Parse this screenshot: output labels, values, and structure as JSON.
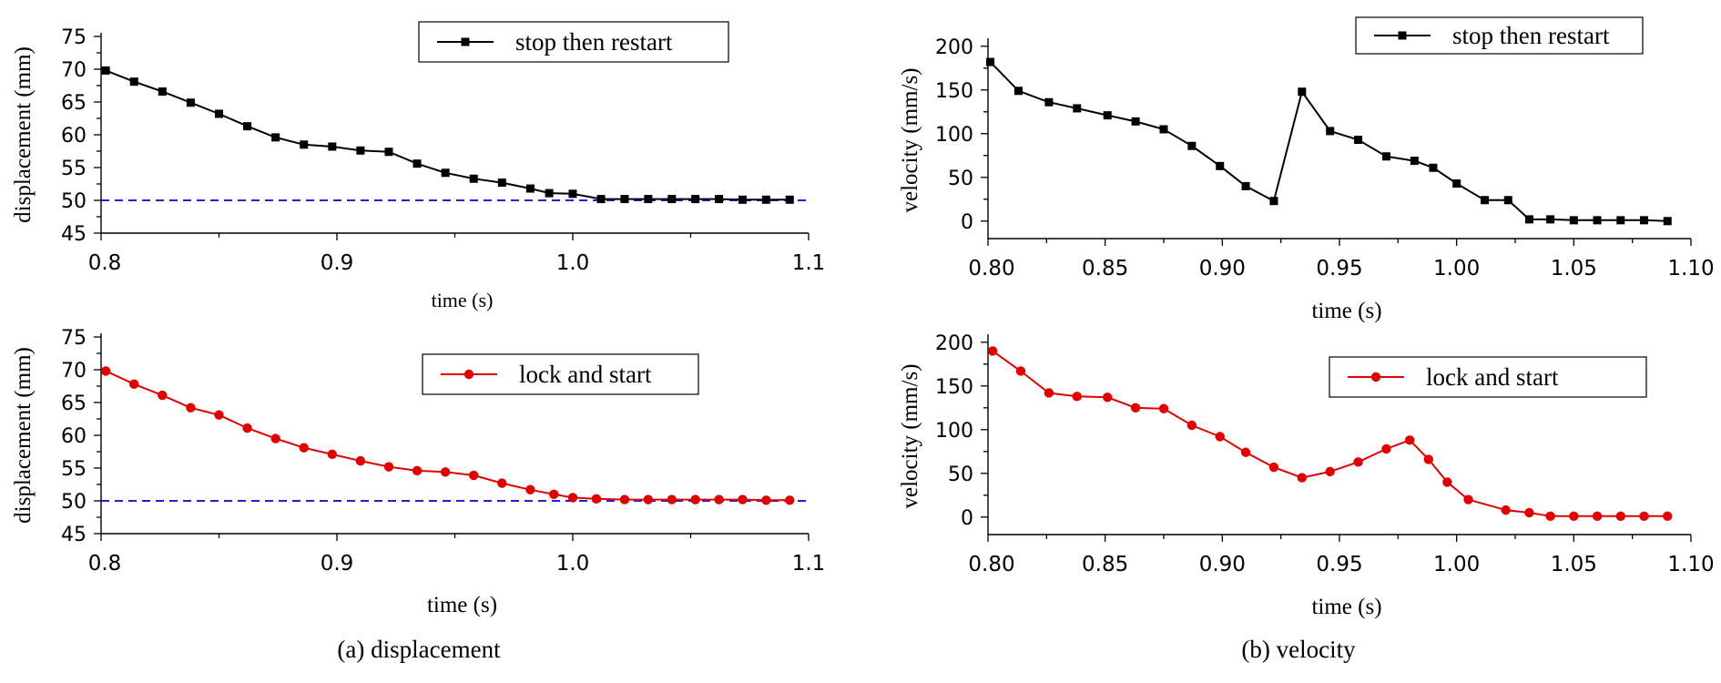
{
  "figure": {
    "caption_a": "(a) displacement",
    "caption_b": "(b) velocity"
  },
  "chart_data": [
    {
      "id": "disp-top",
      "type": "line",
      "xlabel": "time (s)",
      "ylabel": "displacement (mm)",
      "xlim": [
        0.8,
        1.1
      ],
      "ylim": [
        45,
        75
      ],
      "xticks": [
        0.8,
        0.9,
        1.0,
        1.1
      ],
      "xtick_labels": [
        "0.8",
        "0.9",
        "1.0",
        "1.1"
      ],
      "yticks": [
        45,
        50,
        55,
        60,
        65,
        70,
        75
      ],
      "ytick_labels": [
        "45",
        "50",
        "55",
        "60",
        "65",
        "70",
        "75"
      ],
      "legend_position": "top-right",
      "reference_line": {
        "y": 50,
        "color": "#1f1fd6",
        "style": "dashed"
      },
      "series": [
        {
          "name": "stop then restart",
          "color": "#000000",
          "marker": "square",
          "x": [
            0.802,
            0.814,
            0.826,
            0.838,
            0.85,
            0.862,
            0.874,
            0.886,
            0.898,
            0.91,
            0.922,
            0.934,
            0.946,
            0.958,
            0.97,
            0.982,
            0.99,
            1.0,
            1.012,
            1.022,
            1.032,
            1.042,
            1.052,
            1.062,
            1.072,
            1.082,
            1.092
          ],
          "values": [
            69.8,
            68.1,
            66.6,
            64.9,
            63.2,
            61.3,
            59.6,
            58.5,
            58.2,
            57.6,
            57.4,
            55.6,
            54.2,
            53.3,
            52.7,
            51.8,
            51.1,
            51.0,
            50.2,
            50.2,
            50.2,
            50.2,
            50.2,
            50.2,
            50.1,
            50.1,
            50.1
          ]
        }
      ]
    },
    {
      "id": "vel-top",
      "type": "line",
      "xlabel": "time (s)",
      "ylabel": "velocity (mm/s)",
      "xlim": [
        0.8,
        1.1
      ],
      "ylim": [
        -20,
        205
      ],
      "xticks": [
        0.8,
        0.85,
        0.9,
        0.95,
        1.0,
        1.05,
        1.1
      ],
      "xtick_labels": [
        "0.80",
        "0.85",
        "0.90",
        "0.95",
        "1.00",
        "1.05",
        "1.10"
      ],
      "yticks": [
        0,
        50,
        100,
        150,
        200
      ],
      "ytick_labels": [
        "0",
        "50",
        "100",
        "150",
        "200"
      ],
      "legend_position": "top-right",
      "series": [
        {
          "name": "stop then restart",
          "color": "#000000",
          "marker": "square",
          "x": [
            0.801,
            0.813,
            0.826,
            0.838,
            0.851,
            0.863,
            0.875,
            0.887,
            0.899,
            0.91,
            0.922,
            0.934,
            0.946,
            0.958,
            0.97,
            0.982,
            0.99,
            1.0,
            1.012,
            1.022,
            1.031,
            1.04,
            1.05,
            1.06,
            1.07,
            1.08,
            1.09
          ],
          "values": [
            182,
            149,
            136,
            129,
            121,
            114,
            105,
            86,
            63,
            40,
            23,
            148,
            103,
            93,
            74,
            69,
            61,
            43,
            24,
            24,
            2,
            2,
            1,
            1,
            1,
            1,
            0
          ]
        }
      ]
    },
    {
      "id": "disp-bottom",
      "type": "line",
      "xlabel": "time (s)",
      "ylabel": "displacement (mm)",
      "xlim": [
        0.8,
        1.1
      ],
      "ylim": [
        45,
        75
      ],
      "xticks": [
        0.8,
        0.9,
        1.0,
        1.1
      ],
      "xtick_labels": [
        "0.8",
        "0.9",
        "1.0",
        "1.1"
      ],
      "yticks": [
        45,
        50,
        55,
        60,
        65,
        70,
        75
      ],
      "ytick_labels": [
        "45",
        "50",
        "55",
        "60",
        "65",
        "70",
        "75"
      ],
      "legend_position": "top-right",
      "reference_line": {
        "y": 50,
        "color": "#1f1fd6",
        "style": "dashed"
      },
      "series": [
        {
          "name": "lock and start",
          "color": "#e00000",
          "marker": "circle",
          "x": [
            0.802,
            0.814,
            0.826,
            0.838,
            0.85,
            0.862,
            0.874,
            0.886,
            0.898,
            0.91,
            0.922,
            0.934,
            0.946,
            0.958,
            0.97,
            0.982,
            0.992,
            1.0,
            1.01,
            1.022,
            1.032,
            1.042,
            1.052,
            1.062,
            1.072,
            1.082,
            1.092
          ],
          "values": [
            69.8,
            67.8,
            66.1,
            64.2,
            63.1,
            61.1,
            59.5,
            58.1,
            57.1,
            56.1,
            55.2,
            54.6,
            54.4,
            53.9,
            52.7,
            51.7,
            51.0,
            50.5,
            50.3,
            50.2,
            50.2,
            50.2,
            50.2,
            50.2,
            50.2,
            50.1,
            50.1
          ]
        }
      ]
    },
    {
      "id": "vel-bottom",
      "type": "line",
      "xlabel": "time (s)",
      "ylabel": "velocity (mm/s)",
      "xlim": [
        0.8,
        1.1
      ],
      "ylim": [
        -20,
        205
      ],
      "xticks": [
        0.8,
        0.85,
        0.9,
        0.95,
        1.0,
        1.05,
        1.1
      ],
      "xtick_labels": [
        "0.80",
        "0.85",
        "0.90",
        "0.95",
        "1.00",
        "1.05",
        "1.10"
      ],
      "yticks": [
        0,
        50,
        100,
        150,
        200
      ],
      "ytick_labels": [
        "0",
        "50",
        "100",
        "150",
        "200"
      ],
      "legend_position": "top-right",
      "series": [
        {
          "name": "lock and start",
          "color": "#e00000",
          "marker": "circle",
          "x": [
            0.802,
            0.814,
            0.826,
            0.838,
            0.851,
            0.863,
            0.875,
            0.887,
            0.899,
            0.91,
            0.922,
            0.934,
            0.946,
            0.958,
            0.97,
            0.98,
            0.988,
            0.996,
            1.005,
            1.021,
            1.031,
            1.04,
            1.05,
            1.06,
            1.07,
            1.08,
            1.09
          ],
          "values": [
            190,
            167,
            142,
            138,
            137,
            125,
            124,
            105,
            92,
            74,
            57,
            45,
            52,
            63,
            78,
            88,
            66,
            40,
            20,
            8,
            5,
            1,
            1,
            1,
            1,
            1,
            1
          ]
        }
      ]
    }
  ]
}
